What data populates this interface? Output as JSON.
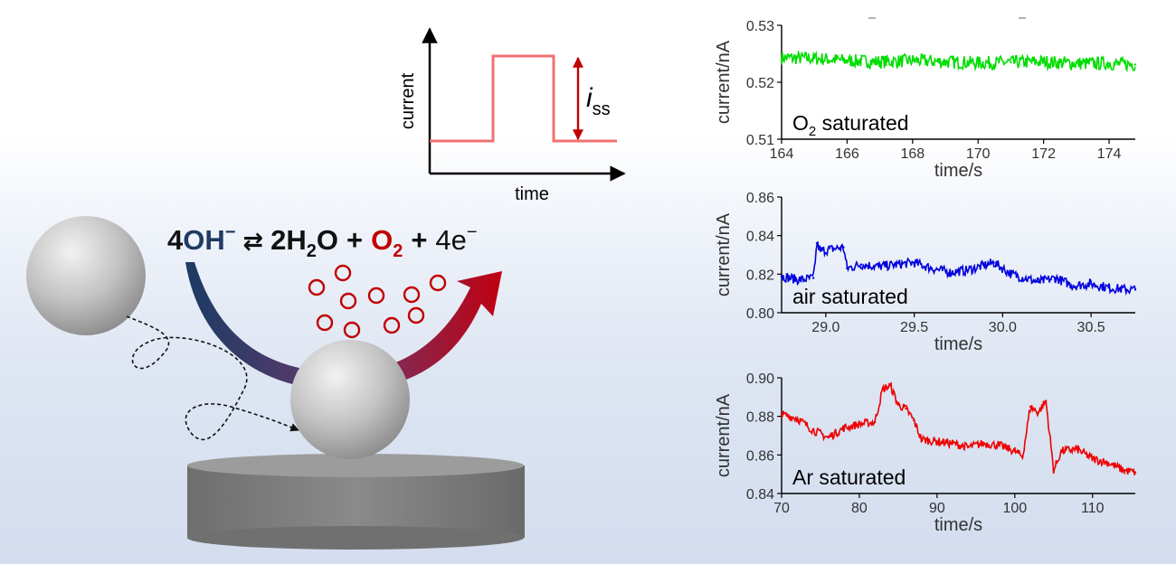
{
  "equation": {
    "coef_oh": "4",
    "oh": "OH",
    "oh_charge": "−",
    "arrow": "⇄",
    "coef_h2o": "2",
    "h2o_h": "H",
    "h2o_sub": "2",
    "h2o_o": "O",
    "plus1": "+",
    "o2_o": "O",
    "o2_sub": "2",
    "plus2": "+",
    "electrons": "4e",
    "e_charge": "−"
  },
  "inset": {
    "ylabel": "current",
    "xlabel": "time",
    "iss_label": "i",
    "iss_sub": "ss"
  },
  "colors": {
    "oh_blue": "#1f3b64",
    "o2_red": "#c00000",
    "step_pink": "#f07070",
    "green": "#00dd00",
    "blue": "#0000dd",
    "red": "#ee0000"
  },
  "chart_data": [
    {
      "type": "line",
      "title": "O2 saturated",
      "label_main": "O",
      "label_sub": "2",
      "label_rest": " saturated",
      "xlabel": "time/s",
      "ylabel": "current/nA",
      "xlim": [
        164,
        174.8
      ],
      "ylim": [
        0.51,
        0.53
      ],
      "xticks": [
        "164",
        "166",
        "168",
        "170",
        "172",
        "174"
      ],
      "yticks": [
        "0.51",
        "0.52",
        "0.53"
      ],
      "x": [
        164,
        165,
        166,
        167,
        168,
        169,
        170,
        171,
        172,
        173,
        174,
        174.8
      ],
      "y": [
        0.5243,
        0.5242,
        0.5238,
        0.5236,
        0.5238,
        0.5236,
        0.5234,
        0.5235,
        0.5236,
        0.5233,
        0.5233,
        0.5231
      ],
      "noise": 0.0012,
      "color": "#00dd00"
    },
    {
      "type": "line",
      "title": "air saturated",
      "label_main": "air saturated",
      "label_sub": "",
      "label_rest": "",
      "xlabel": "time/s",
      "ylabel": "current/nA",
      "xlim": [
        28.75,
        30.75
      ],
      "ylim": [
        0.8,
        0.86
      ],
      "xticks": [
        "29.0",
        "29.5",
        "30.0",
        "30.5"
      ],
      "yticks": [
        "0.80",
        "0.82",
        "0.84",
        "0.86"
      ],
      "x": [
        28.75,
        28.85,
        28.93,
        28.95,
        28.97,
        29.1,
        29.12,
        29.2,
        29.3,
        29.5,
        29.6,
        29.7,
        29.8,
        29.95,
        30.05,
        30.2,
        30.3,
        30.4,
        30.5,
        30.6,
        30.7,
        30.75
      ],
      "y": [
        0.819,
        0.817,
        0.818,
        0.836,
        0.832,
        0.834,
        0.823,
        0.825,
        0.824,
        0.826,
        0.823,
        0.821,
        0.822,
        0.826,
        0.82,
        0.816,
        0.818,
        0.814,
        0.815,
        0.813,
        0.812,
        0.812
      ],
      "noise": 0.0025,
      "color": "#0000dd"
    },
    {
      "type": "line",
      "title": "Ar saturated",
      "label_main": "Ar saturated",
      "label_sub": "",
      "label_rest": "",
      "xlabel": "time/s",
      "ylabel": "current/nA",
      "xlim": [
        70,
        115.5
      ],
      "ylim": [
        0.84,
        0.9
      ],
      "xticks": [
        "70",
        "80",
        "90",
        "100",
        "110"
      ],
      "yticks": [
        "0.84",
        "0.86",
        "0.88",
        "0.90"
      ],
      "x": [
        70,
        72,
        74,
        76,
        78,
        80,
        82,
        83,
        84,
        85,
        86,
        87,
        88,
        90,
        92,
        94,
        96,
        98,
        100,
        101,
        102,
        103,
        104,
        105,
        106,
        108,
        110,
        112,
        114,
        115.5
      ],
      "y": [
        0.881,
        0.879,
        0.873,
        0.869,
        0.874,
        0.876,
        0.877,
        0.894,
        0.896,
        0.886,
        0.884,
        0.878,
        0.868,
        0.867,
        0.866,
        0.864,
        0.866,
        0.865,
        0.862,
        0.859,
        0.885,
        0.882,
        0.888,
        0.852,
        0.862,
        0.863,
        0.858,
        0.856,
        0.852,
        0.851
      ],
      "noise": 0.0022,
      "color": "#ee0000"
    }
  ]
}
